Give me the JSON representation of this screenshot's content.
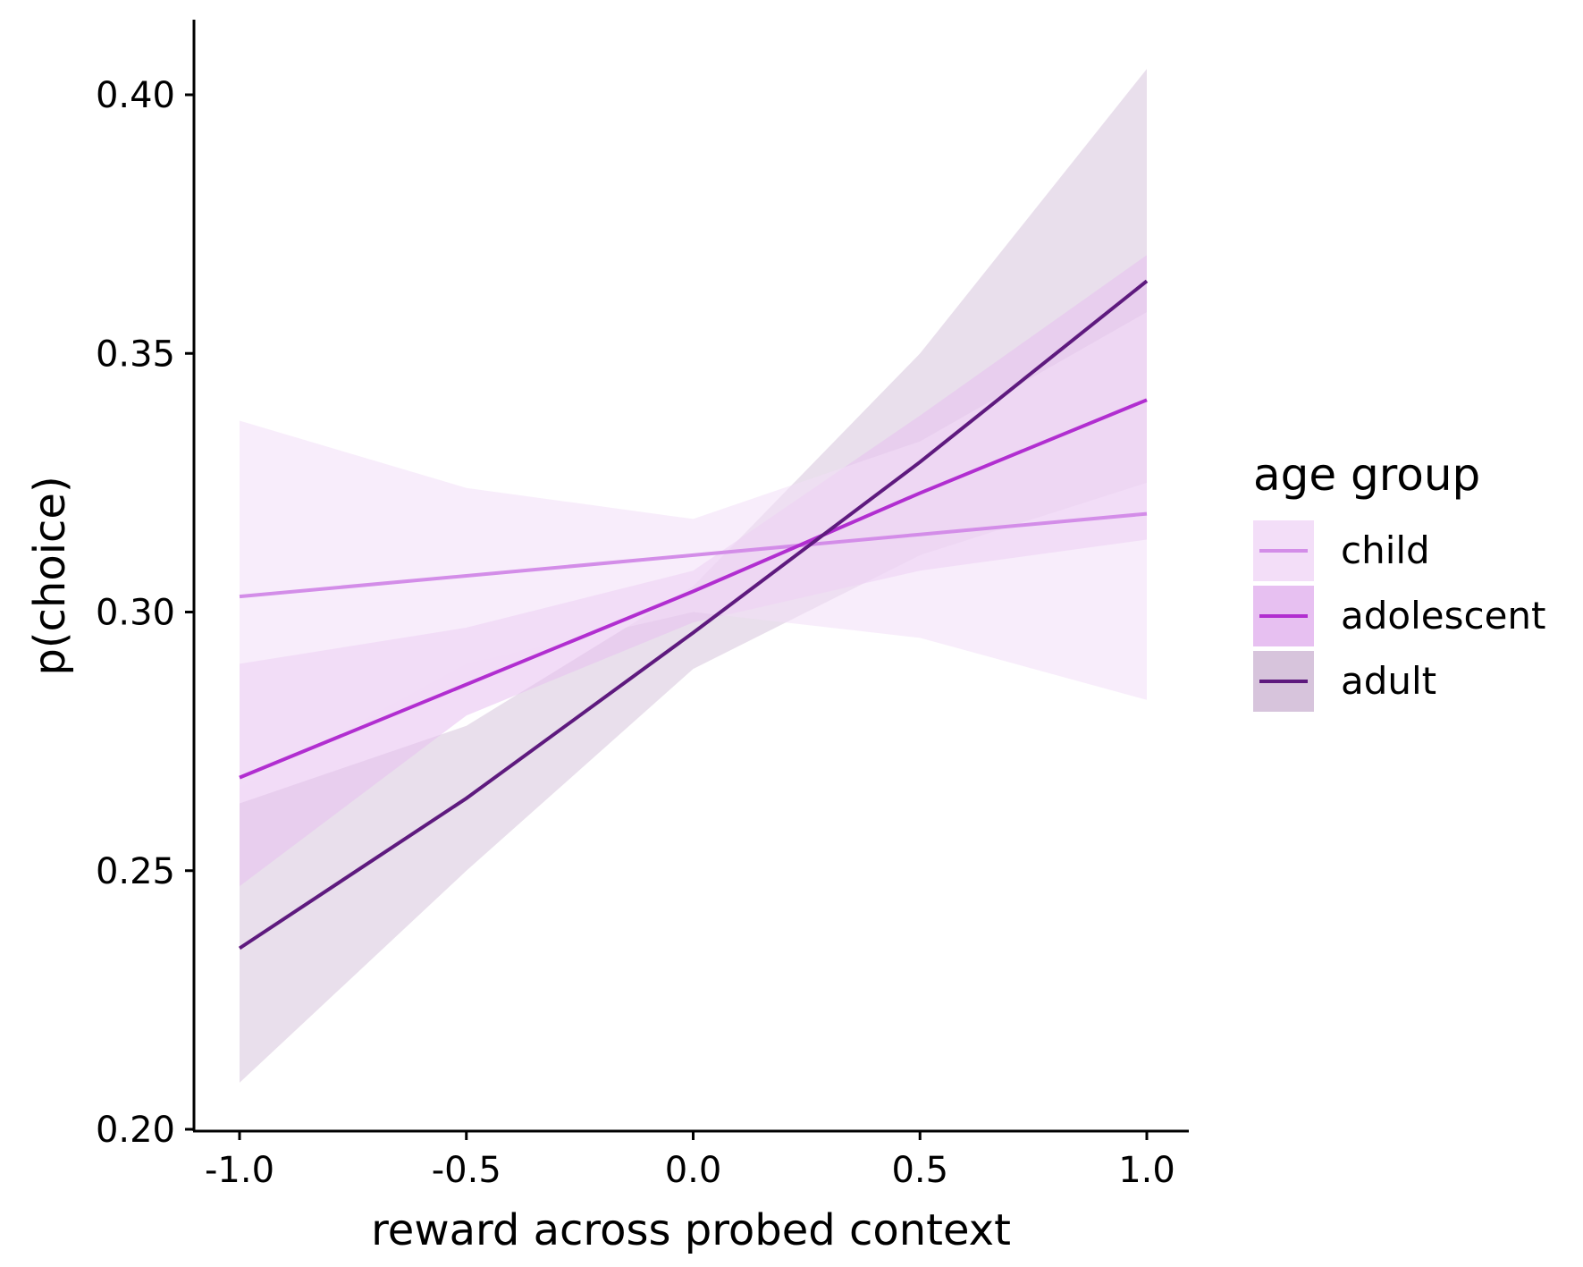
{
  "chart_data": {
    "type": "line",
    "title": "",
    "xlabel": "reward across probed context",
    "ylabel": "p(choice)",
    "xlim": [
      -1.1,
      1.1
    ],
    "ylim": [
      0.2,
      0.415
    ],
    "x_ticks": [
      -1.0,
      -0.5,
      0.0,
      0.5,
      1.0
    ],
    "x_tick_labels": [
      "-1.0",
      "-0.5",
      "0.0",
      "0.5",
      "1.0"
    ],
    "y_ticks": [
      0.2,
      0.25,
      0.3,
      0.35,
      0.4
    ],
    "y_tick_labels": [
      "0.20",
      "0.25",
      "0.30",
      "0.35",
      "0.40"
    ],
    "grid": false,
    "legend": {
      "title": "age group",
      "placement": "right"
    },
    "series": [
      {
        "name": "child",
        "color": "#d38de8",
        "band_color": "#f3def8",
        "x": [
          -1.0,
          -0.5,
          0.0,
          0.5,
          1.0
        ],
        "y": [
          0.303,
          0.307,
          0.311,
          0.315,
          0.319
        ],
        "lower": [
          0.266,
          0.29,
          0.3,
          0.295,
          0.283
        ],
        "upper": [
          0.337,
          0.324,
          0.318,
          0.333,
          0.358
        ]
      },
      {
        "name": "adolescent",
        "color": "#b12ed0",
        "band_color": "#e7c0f1",
        "x": [
          -1.0,
          -0.5,
          0.0,
          0.5,
          1.0
        ],
        "y": [
          0.268,
          0.286,
          0.304,
          0.323,
          0.341
        ],
        "lower": [
          0.247,
          0.28,
          0.298,
          0.308,
          0.314
        ],
        "upper": [
          0.29,
          0.297,
          0.308,
          0.338,
          0.369
        ]
      },
      {
        "name": "adult",
        "color": "#5e1a7e",
        "band_color": "#d7c4dc",
        "x": [
          -1.0,
          -0.5,
          0.0,
          0.5,
          1.0
        ],
        "y": [
          0.235,
          0.264,
          0.296,
          0.329,
          0.364
        ],
        "lower": [
          0.209,
          0.25,
          0.289,
          0.311,
          0.325
        ],
        "upper": [
          0.263,
          0.278,
          0.305,
          0.35,
          0.405
        ]
      }
    ]
  }
}
